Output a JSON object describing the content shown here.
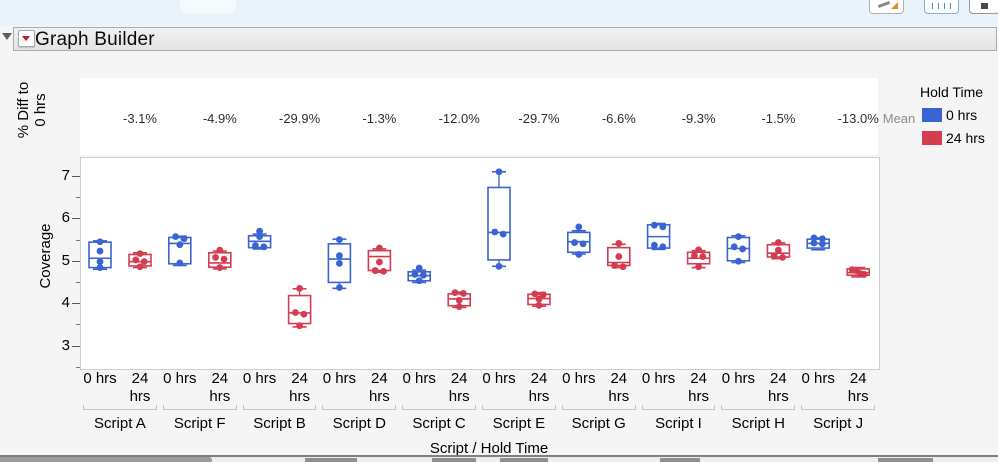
{
  "toolbar": {
    "icons": [
      {
        "name": "screenshot-tool-icon"
      },
      {
        "name": "ruler-icon"
      },
      {
        "name": "window-icon"
      }
    ]
  },
  "title_bar": {
    "title": "Graph Builder",
    "menu_icon": "red-triangle-menu-icon",
    "disclosure_icon": "collapse-triangle-icon"
  },
  "legend": {
    "title": "Hold Time",
    "items": [
      {
        "label": "0 hrs",
        "color": "#3a64d3"
      },
      {
        "label": "24 hrs",
        "color": "#d43c50"
      }
    ]
  },
  "chart_data": {
    "type": "box",
    "ylabel": "Coverage",
    "xlabel": "Script / Hold Time",
    "pct_axis_lines": [
      "% Diff to",
      "0 hrs"
    ],
    "pct_row_suffix": "Mean",
    "ylim": [
      2.47,
      7.45
    ],
    "yticks": [
      7,
      6,
      5,
      4,
      3
    ],
    "yticks_minor": [
      6.5,
      5.5,
      4.5,
      3.5,
      2.5
    ],
    "hold_levels": [
      "0 hrs",
      "24 hrs"
    ],
    "colors": {
      "0 hrs": "#3a64d3",
      "24 hrs": "#d43c50"
    },
    "grid": false,
    "legend_position": "right",
    "groups": [
      {
        "script": "Script A",
        "pct_diff": "-3.1%",
        "boxes": [
          {
            "hold": "0 hrs",
            "box": [
              4.84,
              5.44
            ],
            "median": 5.06,
            "whiskers": [
              4.8,
              5.47
            ],
            "points": [
              5.45,
              5.23,
              4.98,
              4.84
            ]
          },
          {
            "hold": "24 hrs",
            "box": [
              4.88,
              5.15
            ],
            "median": 4.98,
            "whiskers": [
              4.84,
              5.19
            ],
            "points": [
              5.17,
              5.02,
              4.98,
              4.86
            ]
          }
        ]
      },
      {
        "script": "Script F",
        "pct_diff": "-4.9%",
        "boxes": [
          {
            "hold": "0 hrs",
            "box": [
              4.93,
              5.55
            ],
            "median": 5.41,
            "whiskers": [
              4.89,
              5.58
            ],
            "points": [
              5.57,
              5.52,
              5.38,
              4.95
            ]
          },
          {
            "hold": "24 hrs",
            "box": [
              4.85,
              5.19
            ],
            "median": 4.95,
            "whiskers": [
              4.81,
              5.23
            ],
            "points": [
              5.25,
              5.08,
              5.04,
              4.84
            ]
          }
        ]
      },
      {
        "script": "Script B",
        "pct_diff": "-29.9%",
        "boxes": [
          {
            "hold": "0 hrs",
            "box": [
              5.31,
              5.59
            ],
            "median": 5.46,
            "whiskers": [
              5.28,
              5.63
            ],
            "points": [
              5.7,
              5.57,
              5.36,
              5.33
            ]
          },
          {
            "hold": "24 hrs",
            "box": [
              3.52,
              4.18
            ],
            "median": 3.77,
            "whiskers": [
              3.44,
              4.34
            ],
            "points": [
              4.35,
              3.78,
              3.74,
              3.47
            ]
          }
        ]
      },
      {
        "script": "Script D",
        "pct_diff": "-1.3%",
        "boxes": [
          {
            "hold": "0 hrs",
            "box": [
              4.49,
              5.4
            ],
            "median": 5.04,
            "whiskers": [
              4.35,
              5.51
            ],
            "points": [
              5.5,
              5.12,
              4.94,
              4.37
            ]
          },
          {
            "hold": "24 hrs",
            "box": [
              4.77,
              5.24
            ],
            "median": 5.1,
            "whiskers": [
              4.73,
              5.28
            ],
            "points": [
              5.3,
              4.97,
              4.77,
              4.75
            ]
          }
        ]
      },
      {
        "script": "Script C",
        "pct_diff": "-12.0%",
        "boxes": [
          {
            "hold": "0 hrs",
            "box": [
              4.53,
              4.74
            ],
            "median": 4.65,
            "whiskers": [
              4.49,
              4.78
            ],
            "points": [
              4.83,
              4.68,
              4.66,
              4.53
            ]
          },
          {
            "hold": "24 hrs",
            "box": [
              3.94,
              4.22
            ],
            "median": 4.1,
            "whiskers": [
              3.9,
              4.26
            ],
            "points": [
              4.25,
              4.23,
              4.07,
              3.92
            ]
          }
        ]
      },
      {
        "script": "Script E",
        "pct_diff": "-29.7%",
        "boxes": [
          {
            "hold": "0 hrs",
            "box": [
              5.02,
              6.73
            ],
            "median": 5.67,
            "whiskers": [
              4.87,
              7.1
            ],
            "points": [
              7.1,
              5.68,
              5.63,
              4.87
            ]
          },
          {
            "hold": "24 hrs",
            "box": [
              3.97,
              4.21
            ],
            "median": 4.11,
            "whiskers": [
              3.93,
              4.25
            ],
            "points": [
              4.22,
              4.2,
              4.1,
              3.95
            ]
          }
        ]
      },
      {
        "script": "Script G",
        "pct_diff": "-6.6%",
        "boxes": [
          {
            "hold": "0 hrs",
            "box": [
              5.2,
              5.67
            ],
            "median": 5.45,
            "whiskers": [
              5.16,
              5.71
            ],
            "points": [
              5.8,
              5.43,
              5.4,
              5.15
            ]
          },
          {
            "hold": "24 hrs",
            "box": [
              4.89,
              5.31
            ],
            "median": 4.96,
            "whiskers": [
              4.84,
              5.39
            ],
            "points": [
              5.41,
              5.1,
              4.89,
              4.86
            ]
          }
        ]
      },
      {
        "script": "Script I",
        "pct_diff": "-9.3%",
        "boxes": [
          {
            "hold": "0 hrs",
            "box": [
              5.3,
              5.85
            ],
            "median": 5.57,
            "whiskers": [
              5.27,
              5.88
            ],
            "points": [
              5.84,
              5.8,
              5.37,
              5.33
            ]
          },
          {
            "hold": "24 hrs",
            "box": [
              4.93,
              5.2
            ],
            "median": 5.06,
            "whiskers": [
              4.84,
              5.24
            ],
            "points": [
              5.26,
              5.12,
              5.1,
              4.86
            ]
          }
        ]
      },
      {
        "script": "Script H",
        "pct_diff": "-1.5%",
        "boxes": [
          {
            "hold": "0 hrs",
            "box": [
              5.0,
              5.55
            ],
            "median": 5.29,
            "whiskers": [
              4.96,
              5.59
            ],
            "points": [
              5.57,
              5.33,
              5.28,
              4.99
            ]
          },
          {
            "hold": "24 hrs",
            "box": [
              5.09,
              5.38
            ],
            "median": 5.18,
            "whiskers": [
              5.05,
              5.42
            ],
            "points": [
              5.43,
              5.25,
              5.12,
              5.08
            ]
          }
        ]
      },
      {
        "script": "Script J",
        "pct_diff": "-13.0%",
        "boxes": [
          {
            "hold": "0 hrs",
            "box": [
              5.3,
              5.51
            ],
            "median": 5.41,
            "whiskers": [
              5.26,
              5.54
            ],
            "points": [
              5.54,
              5.52,
              5.42,
              5.4
            ]
          },
          {
            "hold": "24 hrs",
            "box": [
              4.66,
              4.81
            ],
            "median": 4.72,
            "whiskers": [
              4.62,
              4.84
            ],
            "points": [
              4.79,
              4.77,
              4.7,
              4.68
            ]
          }
        ]
      }
    ]
  }
}
